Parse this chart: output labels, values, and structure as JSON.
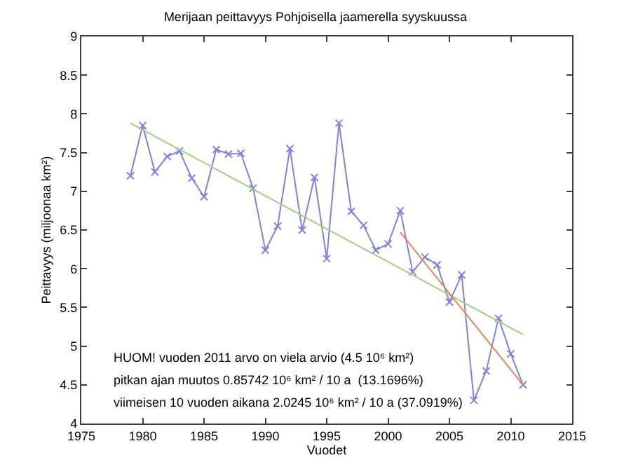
{
  "chart_data": {
    "type": "line",
    "title": "Merijaan peittavyys Pohjoisella jaamerella syyskuussa",
    "xlabel": "Vuodet",
    "ylabel": "Peittavyys (miljoonaa km²)",
    "xlim": [
      1975,
      2015
    ],
    "xticks": [
      1975,
      1980,
      1985,
      1990,
      1995,
      2000,
      2005,
      2010,
      2015
    ],
    "ylim": [
      4,
      9
    ],
    "yticks": [
      4,
      4.5,
      5,
      5.5,
      6,
      6.5,
      7,
      7.5,
      8,
      8.5,
      9
    ],
    "series": [
      {
        "color": "#8080e0",
        "marker": "cross",
        "x": [
          1979,
          1980,
          1981,
          1982,
          1983,
          1984,
          1985,
          1986,
          1987,
          1988,
          1989,
          1990,
          1991,
          1992,
          1993,
          1994,
          1995,
          1996,
          1997,
          1998,
          1999,
          2000,
          2001,
          2002,
          2003,
          2004,
          2005,
          2006,
          2007,
          2008,
          2009,
          2010,
          2011
        ],
        "values": [
          7.2,
          7.85,
          7.25,
          7.45,
          7.52,
          7.17,
          6.93,
          7.54,
          7.48,
          7.49,
          7.04,
          6.24,
          6.55,
          7.55,
          6.5,
          7.18,
          6.13,
          7.88,
          6.74,
          6.56,
          6.24,
          6.32,
          6.75,
          5.96,
          6.15,
          6.05,
          5.57,
          5.92,
          4.3,
          4.68,
          5.36,
          4.9,
          4.5
        ]
      },
      {
        "color": "#a0d080",
        "marker": "none",
        "x": [
          1979,
          2011
        ],
        "values": [
          7.88,
          5.15
        ]
      },
      {
        "color": "#f08060",
        "marker": "none",
        "x": [
          2001,
          2011
        ],
        "values": [
          6.47,
          4.5
        ]
      }
    ],
    "annotations": [
      "HUOM! vuoden 2011 arvo on viela arvio (4.5 10⁶ km²)",
      "pitkan ajan muutos 0.85742 10⁶ km² / 10 a  (13.1696%)",
      "viimeisen 10 vuoden aikana 2.0245 10⁶ km² / 10 a (37.0919%)"
    ]
  }
}
